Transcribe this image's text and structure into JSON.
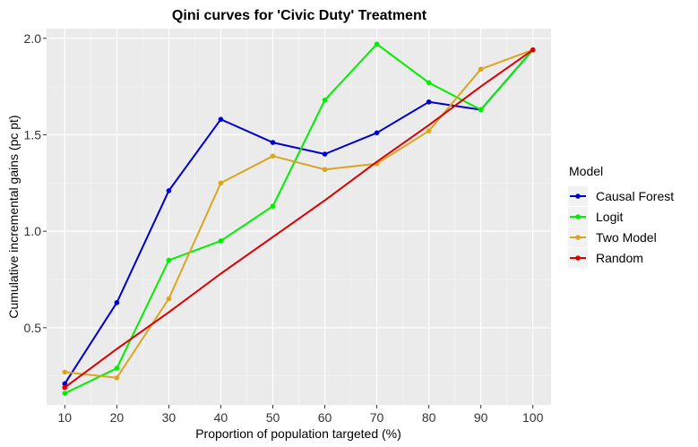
{
  "chart_data": {
    "type": "line",
    "title": "Qini curves for 'Civic Duty' Treatment",
    "xlabel": "Proportion of population targeted (%)",
    "ylabel": "Cumulative incremental gains (pc pt)",
    "x": [
      10,
      20,
      30,
      40,
      50,
      60,
      70,
      80,
      90,
      100
    ],
    "x_ticks": [
      "10",
      "20",
      "30",
      "40",
      "50",
      "60",
      "70",
      "80",
      "90",
      "100"
    ],
    "y_ticks": [
      "0.5",
      "1.0",
      "1.5",
      "2.0"
    ],
    "xlim": [
      6.5,
      103.5
    ],
    "ylim": [
      0.1,
      2.05
    ],
    "grid": true,
    "legend": {
      "title": "Model",
      "position": "right"
    },
    "series": [
      {
        "name": "Causal Forest",
        "color": "#0000cd",
        "values": [
          0.21,
          0.63,
          1.21,
          1.58,
          1.46,
          1.4,
          1.51,
          1.67,
          1.63,
          1.94
        ]
      },
      {
        "name": "Logit",
        "color": "#00ee00",
        "values": [
          0.16,
          0.29,
          0.85,
          0.95,
          1.13,
          1.68,
          1.97,
          1.77,
          1.63,
          1.94
        ]
      },
      {
        "name": "Two Model",
        "color": "#daa520",
        "values": [
          0.27,
          0.24,
          0.65,
          1.25,
          1.39,
          1.32,
          1.35,
          1.52,
          1.84,
          1.94
        ]
      },
      {
        "name": "Random",
        "color": "#dd0000",
        "values": [
          0.19,
          0.39,
          0.58,
          0.78,
          0.97,
          1.16,
          1.36,
          1.55,
          1.75,
          1.94
        ],
        "points": [
          0,
          9
        ]
      }
    ]
  }
}
